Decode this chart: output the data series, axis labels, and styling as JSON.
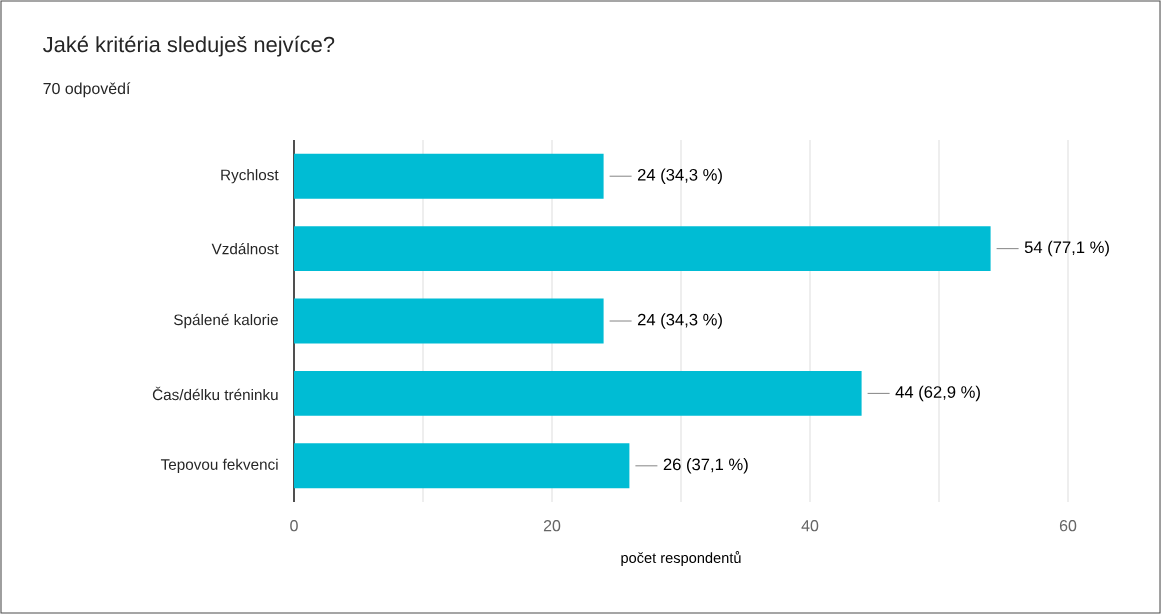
{
  "chart_data": {
    "type": "bar",
    "orientation": "horizontal",
    "title": "Jaké kritéria sleduješ nejvíce?",
    "subtitle": "70 odpovědí",
    "xlabel": "počet respondentů",
    "categories": [
      "Rychlost",
      "Vzdálnost",
      "Spálené kalorie",
      "Čas/délku tréninku",
      "Tepovou fekvenci"
    ],
    "values": [
      24,
      54,
      24,
      44,
      26
    ],
    "value_labels": [
      "24 (34,3 %)",
      "54 (77,1 %)",
      "24 (34,3 %)",
      "44 (62,9 %)",
      "26 (37,1 %)"
    ],
    "color": "#00bcd4",
    "xlim": [
      0,
      60
    ],
    "xticks": [
      0,
      {
        "value": 10,
        "label": null
      },
      20,
      {
        "value": 30,
        "label": null
      },
      40,
      {
        "value": 50,
        "label": null
      },
      60
    ],
    "grid": "x"
  }
}
